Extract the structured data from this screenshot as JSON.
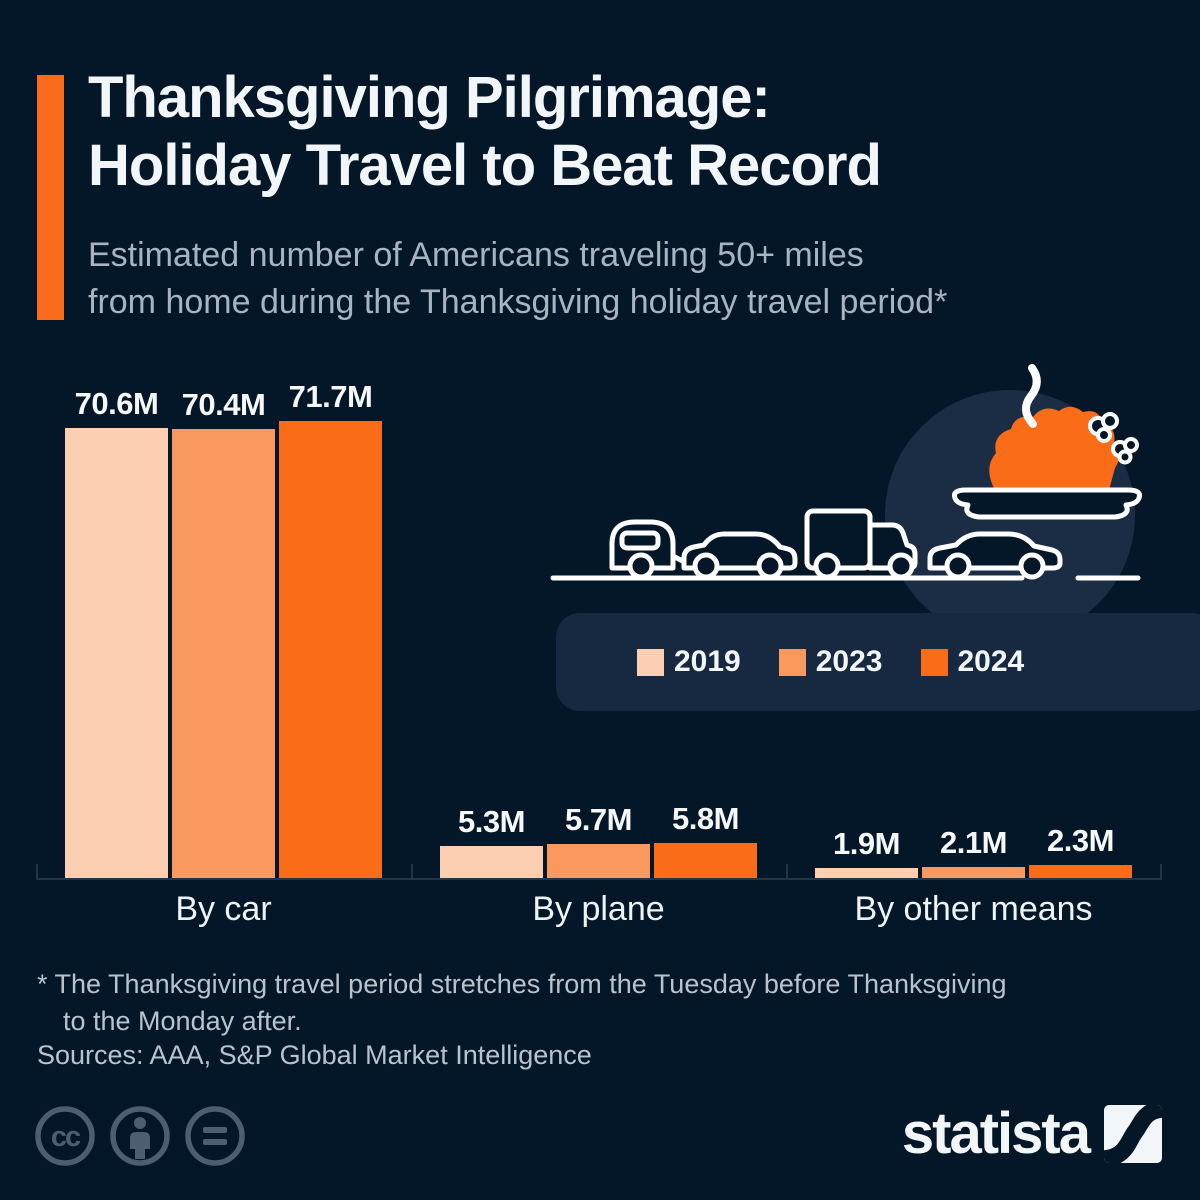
{
  "page": {
    "title_line1": "Thanksgiving Pilgrimage:",
    "title_line2": "Holiday Travel to Beat Record",
    "subtitle_line1": "Estimated number of Americans traveling 50+ miles",
    "subtitle_line2": "from home during the Thanksgiving holiday travel period*"
  },
  "chart_data": {
    "type": "bar",
    "title": "Estimated number of Americans traveling 50+ miles from home during the Thanksgiving holiday travel period",
    "categories": [
      "By car",
      "By plane",
      "By other means"
    ],
    "series": [
      {
        "name": "2019",
        "color": "#fccfb2",
        "values": [
          70.6,
          5.3,
          1.9
        ]
      },
      {
        "name": "2023",
        "color": "#f9995e",
        "values": [
          70.4,
          5.7,
          2.1
        ]
      },
      {
        "name": "2024",
        "color": "#fa6c17",
        "values": [
          71.7,
          5.8,
          2.3
        ]
      }
    ],
    "value_labels": [
      [
        "70.6M",
        "70.4M",
        "71.7M"
      ],
      [
        "5.3M",
        "5.7M",
        "5.8M"
      ],
      [
        "1.9M",
        "2.1M",
        "2.3M"
      ]
    ],
    "unit": "millions of travelers",
    "ylim": [
      0,
      75
    ],
    "grid": false,
    "legend_position": "middle-right"
  },
  "legend": {
    "items": [
      {
        "label": "2019",
        "color": "#fccfb2"
      },
      {
        "label": "2023",
        "color": "#f9995e"
      },
      {
        "label": "2024",
        "color": "#fa6c17"
      }
    ]
  },
  "footnote": {
    "line1": "* The Thanksgiving travel period stretches from the Tuesday before Thanksgiving",
    "line2": "to the Monday after."
  },
  "sources": "Sources: AAA, S&P Global Market Intelligence",
  "branding": {
    "logo_text": "statista"
  },
  "icons": {
    "license": [
      "cc-icon",
      "attribution-icon",
      "no-derivatives-icon"
    ],
    "illustration": [
      "caravan-icon",
      "suv-icon",
      "truck-icon",
      "sedan-icon",
      "turkey-dish-icon",
      "steam-icon"
    ]
  },
  "colors": {
    "background": "#041729",
    "accent": "#f96a1b",
    "panel": "#162940",
    "backdrop_circle": "#1b2d45",
    "title_text": "#f3f6f8",
    "subtitle_text": "#a7b4c1",
    "footnote_text": "#b8c3cd"
  }
}
